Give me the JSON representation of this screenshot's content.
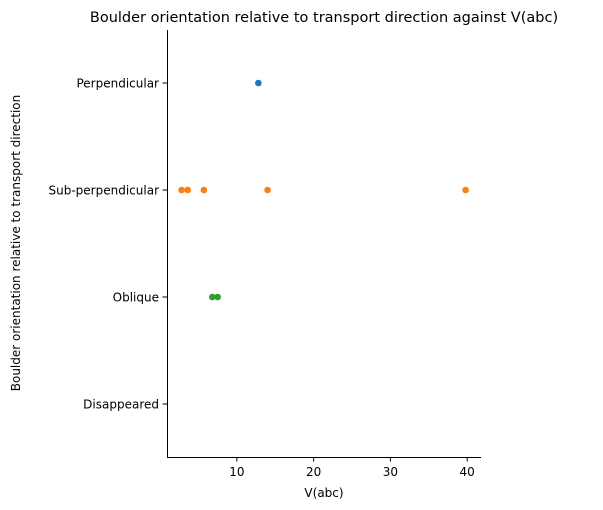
{
  "chart_data": {
    "type": "scatter",
    "title": "Boulder orientation relative to transport direction against V(abc)",
    "xlabel": "V(abc)",
    "ylabel": "Boulder orientation relative to transport direction",
    "xlim": [
      0.9,
      41.8
    ],
    "x_ticks": [
      10,
      20,
      30,
      40
    ],
    "categories": [
      "Perpendicular",
      "Sub-perpendicular",
      "Oblique",
      "Disappeared"
    ],
    "grid": false,
    "series": [
      {
        "category": "Perpendicular",
        "color": "#1f77b4",
        "x": [
          12.8
        ]
      },
      {
        "category": "Sub-perpendicular",
        "color": "#ff7f0e",
        "x": [
          2.8,
          3.6,
          5.7,
          14.0,
          39.8
        ]
      },
      {
        "category": "Oblique",
        "color": "#2ca02c",
        "x": [
          6.8,
          7.5
        ]
      },
      {
        "category": "Disappeared",
        "color": "#d62728",
        "x": []
      }
    ]
  }
}
